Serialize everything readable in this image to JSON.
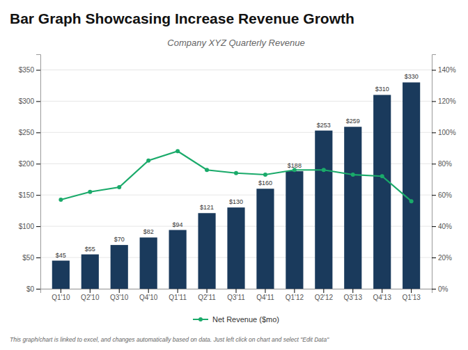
{
  "chart_data": {
    "type": "bar",
    "title": "Bar Graph Showcasing Increase Revenue Growth",
    "subtitle": "Company XYZ Quarterly Revenue",
    "footer": "This graph/chart is linked to excel, and changes automatically based on data. Just left click on chart and select \"Edit Data\"",
    "categories": [
      "Q1'10",
      "Q2'10",
      "Q3'10",
      "Q4'10",
      "Q1'11",
      "Q2'11",
      "Q3'11",
      "Q4'11",
      "Q1'12",
      "Q2'12",
      "Q3'13",
      "Q4'13",
      "Q1'13"
    ],
    "series": [
      {
        "type": "bar",
        "color": "#1a3a5c",
        "values": [
          45,
          55,
          70,
          82,
          94,
          121,
          130,
          160,
          188,
          253,
          259,
          310,
          330
        ],
        "value_labels": [
          "$45",
          "$55",
          "$70",
          "$82",
          "$94",
          "$121",
          "$130",
          "$160",
          "$188",
          "$253",
          "$259",
          "$310",
          "$330"
        ]
      },
      {
        "name": "Net Revenue ($mo)",
        "type": "line",
        "axis": "y2",
        "color": "#1aaa6a",
        "marker": "circle",
        "values": [
          57,
          62,
          65,
          82,
          88,
          76,
          74,
          73,
          76,
          76,
          73,
          72,
          56
        ]
      }
    ],
    "ylim": [
      0,
      375
    ],
    "yticks": [
      {
        "value": 0,
        "label": "$0"
      },
      {
        "value": 50,
        "label": "$50"
      },
      {
        "value": 100,
        "label": "$100"
      },
      {
        "value": 150,
        "label": "$150"
      },
      {
        "value": 200,
        "label": "$200"
      },
      {
        "value": 250,
        "label": "$250"
      },
      {
        "value": 300,
        "label": "$300"
      },
      {
        "value": 350,
        "label": "$350"
      }
    ],
    "y2lim": [
      0,
      150
    ],
    "y2ticks": [
      {
        "value": 0,
        "label": "0%"
      },
      {
        "value": 20,
        "label": "20%"
      },
      {
        "value": 40,
        "label": "40%"
      },
      {
        "value": 60,
        "label": "60%"
      },
      {
        "value": 80,
        "label": "80%"
      },
      {
        "value": 100,
        "label": "100%"
      },
      {
        "value": 120,
        "label": "120%"
      },
      {
        "value": 140,
        "label": "140%"
      }
    ],
    "grid": true,
    "data_labels": true,
    "legend": "bottom"
  }
}
